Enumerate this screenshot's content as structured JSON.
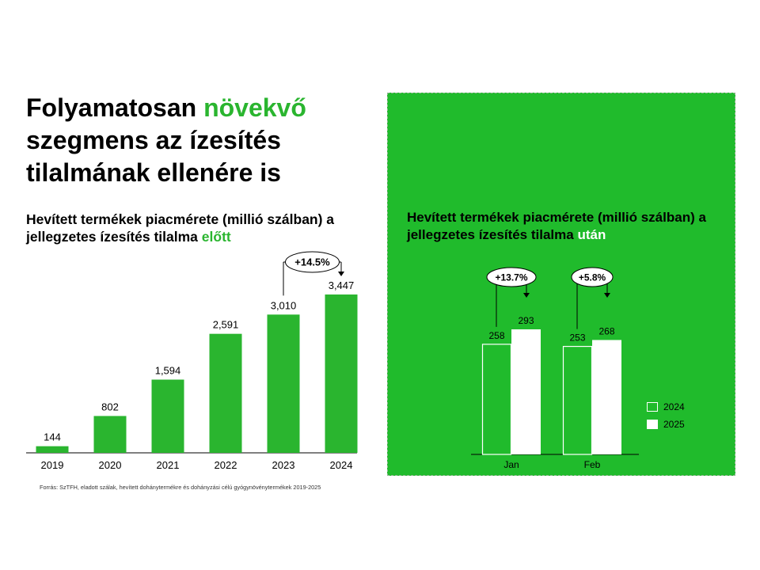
{
  "headline": {
    "part1": "Folyamatosan ",
    "accent": "növekvő",
    "part2": " szegmens az ízesítés tilalmának ellenére is"
  },
  "colors": {
    "green": "#2ab52f",
    "panel_green": "#20bb2c",
    "white": "#ffffff",
    "black": "#000000"
  },
  "chart_data": [
    {
      "type": "bar",
      "title_part1": "Hevített termékek piacmérete (millió szálban) a jellegzetes ízesítés tilalma ",
      "title_accent": "előtt",
      "categories": [
        "2019",
        "2020",
        "2021",
        "2022",
        "2023",
        "2024"
      ],
      "values": [
        144,
        802,
        1594,
        2591,
        3010,
        3447
      ],
      "value_labels": [
        "144",
        "802",
        "1,594",
        "2,591",
        "3,010",
        "3,447"
      ],
      "annotation": {
        "label": "+14.5%",
        "from": "2023",
        "to": "2024"
      },
      "grid": false
    },
    {
      "type": "bar",
      "title_part1": "Hevített termékek piacmérete (millió szálban) a jellegzetes ízesítés tilalma ",
      "title_accent": "után",
      "categories": [
        "Jan",
        "Feb"
      ],
      "series": [
        {
          "name": "2024",
          "values": [
            258,
            253
          ]
        },
        {
          "name": "2025",
          "values": [
            293,
            268
          ]
        }
      ],
      "annotations": [
        {
          "category": "Jan",
          "label": "+13.7%"
        },
        {
          "category": "Feb",
          "label": "+5.8%"
        }
      ],
      "legend": "right",
      "grid": false
    }
  ],
  "source": "Forrás: SzTFH, eladott szálak, hevített dohánytermékre és dohányzási célú gyógynövénytermékek  2019-2025"
}
